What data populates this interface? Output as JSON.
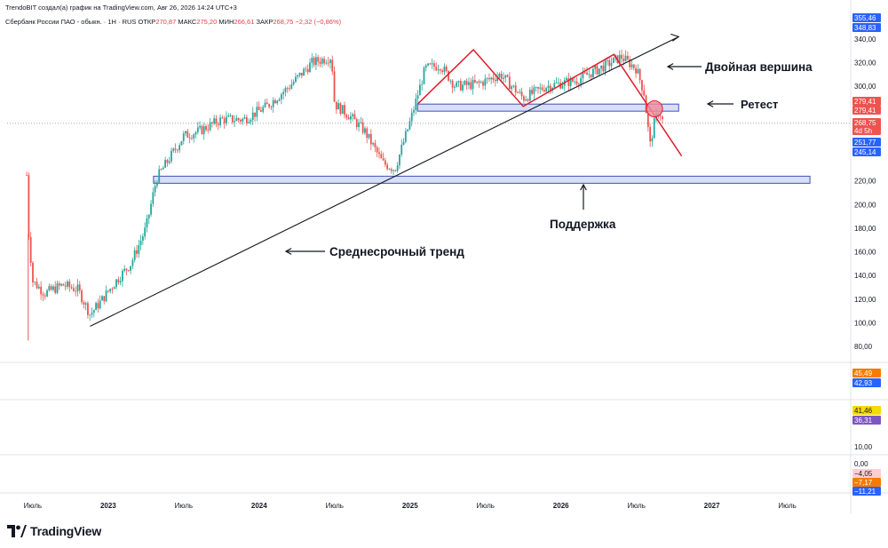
{
  "header": {
    "author_line": "TrendoBIT создал(а) график на TradingView.com, Авг 26, 2026 14:24 UTC+3"
  },
  "symbol": {
    "name": "Сбербанк России ПАО - обыкн. · 1H · RUS",
    "open_label": "ОТКР",
    "open_value": "270,87",
    "high_label": "МАКС",
    "high_value": "275,20",
    "low_label": "МИН",
    "low_value": "266,61",
    "close_label": "ЗАКР",
    "close_value": "268,75",
    "change": "−2,32 (−0,86%)"
  },
  "annotations": {
    "double_top": "Двойная вершина",
    "retest": "Ретест",
    "support": "Поддержка",
    "medium_trend": "Среднесрочный тренд"
  },
  "footer": {
    "brand": "TradingView"
  },
  "colors": {
    "up": "#26a69a",
    "down": "#ef5350",
    "trend": "#131722",
    "pattern": "#e11d2a",
    "zone_fill": "#c9d3f7",
    "zone_stroke": "#3f51b5",
    "retest_circle": "#f28b9a"
  },
  "chart_data": {
    "type": "candlestick",
    "price_axis": {
      "ticks": [
        "340,00",
        "320,00",
        "300,00",
        "280,00",
        "220,00",
        "200,00",
        "180,00",
        "160,00",
        "140,00",
        "120,00",
        "100,00",
        "80,00"
      ],
      "range": [
        80,
        340
      ]
    },
    "time_axis": {
      "ticks": [
        "Июль",
        "2023",
        "Июль",
        "2024",
        "Июль",
        "2025",
        "Июль",
        "2026",
        "Июль",
        "2027",
        "Июль"
      ]
    },
    "price_badges": [
      {
        "label": "355,46",
        "color": "#2962ff",
        "level": 355.46
      },
      {
        "label": "348,83",
        "color": "#2962ff",
        "level": 348.83
      },
      {
        "label": "279,41",
        "color": "#ef5350",
        "level": 279.41
      },
      {
        "label": "279,41",
        "color": "#ef5350",
        "level": 276.6
      },
      {
        "label": "268,75",
        "color": "#ef5350",
        "level": 268.75
      },
      {
        "label": "4d 5h",
        "color": "#ef5350",
        "level": 265.0
      },
      {
        "label": "251,77",
        "color": "#2962ff",
        "level": 251.77
      },
      {
        "label": "245,14",
        "color": "#2962ff",
        "level": 244.0
      }
    ],
    "indicator_panes": [
      {
        "badges": [
          {
            "label": "45,49",
            "color": "#f57c00"
          },
          {
            "label": "42,93",
            "color": "#2962ff"
          }
        ]
      },
      {
        "badges": [
          {
            "label": "41,46",
            "color": "#f5d90a"
          },
          {
            "label": "36,31",
            "color": "#7e57c2"
          }
        ],
        "ticks": [
          "10,00"
        ]
      },
      {
        "badges": [
          {
            "label": "−4,05",
            "color": "#ffcdd2"
          },
          {
            "label": "−7,17",
            "color": "#f57c00"
          },
          {
            "label": "−11,21",
            "color": "#2962ff"
          }
        ],
        "ticks": [
          "0,00"
        ]
      }
    ],
    "path_points": [
      {
        "t": 2022.46,
        "p": 225
      },
      {
        "t": 2022.47,
        "p": 180
      },
      {
        "t": 2022.5,
        "p": 135
      },
      {
        "t": 2022.58,
        "p": 125
      },
      {
        "t": 2022.7,
        "p": 132
      },
      {
        "t": 2022.8,
        "p": 128
      },
      {
        "t": 2022.88,
        "p": 107
      },
      {
        "t": 2022.95,
        "p": 118
      },
      {
        "t": 2023.05,
        "p": 135
      },
      {
        "t": 2023.15,
        "p": 150
      },
      {
        "t": 2023.25,
        "p": 180
      },
      {
        "t": 2023.32,
        "p": 222
      },
      {
        "t": 2023.4,
        "p": 238
      },
      {
        "t": 2023.5,
        "p": 258
      },
      {
        "t": 2023.6,
        "p": 262
      },
      {
        "t": 2023.75,
        "p": 272
      },
      {
        "t": 2023.9,
        "p": 272
      },
      {
        "t": 2024.05,
        "p": 283
      },
      {
        "t": 2024.2,
        "p": 300
      },
      {
        "t": 2024.35,
        "p": 320
      },
      {
        "t": 2024.48,
        "p": 325
      },
      {
        "t": 2024.5,
        "p": 285
      },
      {
        "t": 2024.6,
        "p": 275
      },
      {
        "t": 2024.7,
        "p": 262
      },
      {
        "t": 2024.82,
        "p": 235
      },
      {
        "t": 2024.9,
        "p": 230
      },
      {
        "t": 2025.0,
        "p": 270
      },
      {
        "t": 2025.1,
        "p": 315
      },
      {
        "t": 2025.2,
        "p": 318
      },
      {
        "t": 2025.3,
        "p": 300
      },
      {
        "t": 2025.45,
        "p": 302
      },
      {
        "t": 2025.6,
        "p": 310
      },
      {
        "t": 2025.75,
        "p": 290
      },
      {
        "t": 2025.9,
        "p": 300
      },
      {
        "t": 2026.1,
        "p": 305
      },
      {
        "t": 2026.3,
        "p": 318
      },
      {
        "t": 2026.4,
        "p": 325
      },
      {
        "t": 2026.5,
        "p": 315
      },
      {
        "t": 2026.55,
        "p": 295
      },
      {
        "t": 2026.59,
        "p": 250
      },
      {
        "t": 2026.62,
        "p": 270
      },
      {
        "t": 2026.65,
        "p": 280
      },
      {
        "t": 2026.68,
        "p": 268
      }
    ],
    "trendline": {
      "from": {
        "t": 2022.88,
        "p": 97
      },
      "to": {
        "t": 2026.78,
        "p": 342
      }
    },
    "double_top": [
      {
        "t": 2025.05,
        "p": 285
      },
      {
        "t": 2025.42,
        "p": 331
      },
      {
        "t": 2025.75,
        "p": 283
      },
      {
        "t": 2026.35,
        "p": 327
      },
      {
        "t": 2026.8,
        "p": 241
      }
    ],
    "zones": [
      {
        "name": "resistance",
        "from_t": 2025.05,
        "to_t": 2026.78,
        "p_low": 279,
        "p_high": 285
      },
      {
        "name": "support",
        "from_t": 2023.3,
        "to_t": 2027.65,
        "p_low": 218,
        "p_high": 224
      }
    ],
    "retest_point": {
      "t": 2026.62,
      "p": 281
    }
  }
}
